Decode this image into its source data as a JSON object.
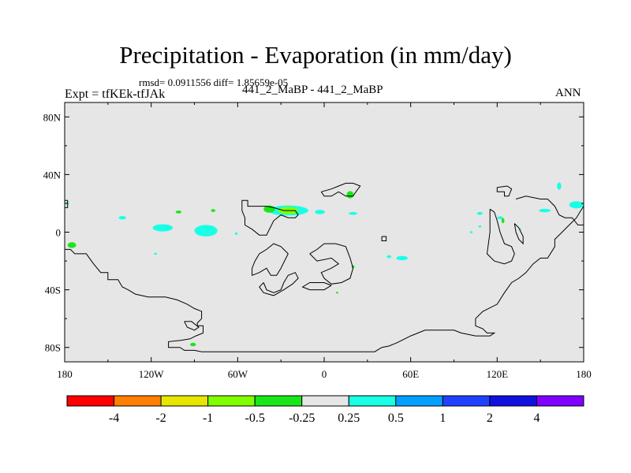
{
  "title": "Precipitation - Evaporation (in mm/day)",
  "stats": "rmsd= 0.0911556 diff= 1.85659e-05",
  "experiment": "Expt = tfKEk-tfJAk",
  "center_label": "441_2_MaBP - 441_2_MaBP",
  "season": "ANN",
  "colors": {
    "land_background": "#e6e6e6",
    "coast_line": "#000000",
    "levels": [
      "#ff0000",
      "#ff8000",
      "#e6e600",
      "#80ff00",
      "#19e619",
      "#e6e6e6",
      "#19ffe6",
      "#00a0ff",
      "#2040ff",
      "#1010e0",
      "#8000ff"
    ]
  },
  "chart_data": {
    "type": "heatmap",
    "projection": "cylindrical equidistant",
    "xlim": [
      -180,
      180
    ],
    "ylim": [
      -90,
      90
    ],
    "x_ticks": [
      -180,
      -120,
      -60,
      0,
      60,
      120,
      180
    ],
    "x_tick_labels": [
      "180",
      "120W",
      "60W",
      "0",
      "60E",
      "120E",
      "180"
    ],
    "y_ticks": [
      80,
      40,
      0,
      -40,
      -80
    ],
    "y_tick_labels": [
      "80N",
      "40N",
      "0",
      "40S",
      "80S"
    ],
    "colorbar": {
      "boundaries": [
        "-4",
        "-2",
        "-1",
        "-0.5",
        "-0.25",
        "0.25",
        "0.5",
        "1",
        "2",
        "4"
      ]
    },
    "anomaly_patches": [
      {
        "lon": -112,
        "lat": 3,
        "rlon": 7,
        "rlat": 2.5,
        "level": 6
      },
      {
        "lon": -82,
        "lat": 1,
        "rlon": 8,
        "rlat": 4,
        "level": 6
      },
      {
        "lon": -140,
        "lat": 10,
        "rlon": 2.5,
        "rlat": 1.2,
        "level": 6
      },
      {
        "lon": -175,
        "lat": -9,
        "rlon": 3,
        "rlat": 2,
        "level": 4
      },
      {
        "lon": -25,
        "lat": 15,
        "rlon": 14,
        "rlat": 3.5,
        "level": 6
      },
      {
        "lon": -25,
        "lat": 15,
        "rlon": 7,
        "rlat": 2.5,
        "level": 3
      },
      {
        "lon": -38,
        "lat": 16,
        "rlon": 4,
        "rlat": 2.5,
        "level": 4
      },
      {
        "lon": -3,
        "lat": 14,
        "rlon": 3.5,
        "rlat": 1.5,
        "level": 6
      },
      {
        "lon": 18,
        "lat": 26,
        "rlon": 2.5,
        "rlat": 2.5,
        "level": 4
      },
      {
        "lon": 20,
        "lat": 13,
        "rlon": 3,
        "rlat": 1,
        "level": 6
      },
      {
        "lon": -101,
        "lat": 14,
        "rlon": 2,
        "rlat": 1,
        "level": 4
      },
      {
        "lon": -77,
        "lat": 15,
        "rlon": 1.5,
        "rlat": 1,
        "level": 4
      },
      {
        "lon": -61,
        "lat": -1,
        "rlon": 1,
        "rlat": 0.8,
        "level": 6
      },
      {
        "lon": -117,
        "lat": -15,
        "rlon": 1,
        "rlat": 0.7,
        "level": 6
      },
      {
        "lon": 54,
        "lat": -18,
        "rlon": 4,
        "rlat": 1.5,
        "level": 6
      },
      {
        "lon": 45,
        "lat": -17,
        "rlon": 1.5,
        "rlat": 1,
        "level": 6
      },
      {
        "lon": 20,
        "lat": -24,
        "rlon": 1,
        "rlat": 1,
        "level": 4
      },
      {
        "lon": 9,
        "lat": -42,
        "rlon": 0.7,
        "rlat": 0.7,
        "level": 4
      },
      {
        "lon": 108,
        "lat": 13,
        "rlon": 2,
        "rlat": 1,
        "level": 6
      },
      {
        "lon": 122,
        "lat": 10,
        "rlon": 2,
        "rlat": 1,
        "level": 6
      },
      {
        "lon": 124,
        "lat": 8,
        "rlon": 1,
        "rlat": 1.8,
        "level": 4
      },
      {
        "lon": 108,
        "lat": 4,
        "rlon": 1,
        "rlat": 0.7,
        "level": 6
      },
      {
        "lon": 102,
        "lat": 0,
        "rlon": 1,
        "rlat": 0.7,
        "level": 6
      },
      {
        "lon": 136,
        "lat": 2,
        "rlon": 0.8,
        "rlat": 0.6,
        "level": 6
      },
      {
        "lon": 163,
        "lat": 32,
        "rlon": 1.5,
        "rlat": 2.5,
        "level": 6
      },
      {
        "lon": 175,
        "lat": 19,
        "rlon": 5,
        "rlat": 2.5,
        "level": 6
      },
      {
        "lon": 153,
        "lat": 15,
        "rlon": 4,
        "rlat": 1.2,
        "level": 6
      },
      {
        "lon": -91,
        "lat": -78,
        "rlon": 2,
        "rlat": 1.2,
        "level": 4
      },
      {
        "lon": -178,
        "lat": 20,
        "rlon": 1,
        "rlat": 1,
        "level": 6
      }
    ],
    "coastlines": [
      [
        [
          -180,
          -12
        ],
        [
          -176,
          -12
        ],
        [
          -173,
          -15
        ],
        [
          -165,
          -15
        ],
        [
          -160,
          -22
        ],
        [
          -155,
          -28
        ],
        [
          -150,
          -28
        ],
        [
          -150,
          -33
        ],
        [
          -143,
          -33
        ],
        [
          -140,
          -38
        ],
        [
          -136,
          -40
        ],
        [
          -131,
          -43
        ],
        [
          -122,
          -45
        ],
        [
          -110,
          -45
        ],
        [
          -102,
          -47
        ],
        [
          -95,
          -50
        ],
        [
          -90,
          -53
        ],
        [
          -85,
          -55
        ],
        [
          -85,
          -60
        ],
        [
          -88,
          -63
        ],
        [
          -88,
          -65
        ],
        [
          -84,
          -65
        ],
        [
          -84,
          -70
        ],
        [
          -89,
          -72
        ],
        [
          -93,
          -74
        ],
        [
          -99,
          -75
        ],
        [
          -108,
          -76
        ],
        [
          -108,
          -80
        ],
        [
          -100,
          -80
        ],
        [
          -97,
          -82
        ],
        [
          -90,
          -82
        ],
        [
          -85,
          -83
        ],
        [
          -75,
          -83
        ],
        [
          -60,
          -83
        ],
        [
          -30,
          -83
        ],
        [
          0,
          -83
        ],
        [
          30,
          -83
        ],
        [
          35,
          -83
        ],
        [
          40,
          -80
        ],
        [
          45,
          -79
        ],
        [
          50,
          -77
        ],
        [
          60,
          -72
        ],
        [
          70,
          -68
        ],
        [
          80,
          -68
        ],
        [
          90,
          -68
        ],
        [
          95,
          -70
        ],
        [
          105,
          -72
        ],
        [
          115,
          -72
        ],
        [
          118,
          -70
        ],
        [
          113,
          -70
        ],
        [
          110,
          -67
        ],
        [
          105,
          -65
        ],
        [
          105,
          -60
        ],
        [
          110,
          -55
        ],
        [
          120,
          -50
        ],
        [
          125,
          -42
        ],
        [
          130,
          -35
        ],
        [
          135,
          -32
        ],
        [
          140,
          -28
        ],
        [
          145,
          -22
        ],
        [
          150,
          -18
        ],
        [
          155,
          -18
        ],
        [
          160,
          -10
        ],
        [
          160,
          -5
        ],
        [
          165,
          0
        ],
        [
          170,
          5
        ],
        [
          175,
          10
        ],
        [
          178,
          15
        ],
        [
          180,
          18
        ]
      ],
      [
        [
          -97,
          -62
        ],
        [
          -95,
          -66
        ],
        [
          -90,
          -68
        ],
        [
          -87,
          -66
        ],
        [
          -92,
          -62
        ],
        [
          -97,
          -62
        ]
      ],
      [
        [
          -50,
          18
        ],
        [
          -53,
          18
        ],
        [
          -53,
          22
        ],
        [
          -57,
          22
        ],
        [
          -57,
          15
        ],
        [
          -55,
          10
        ],
        [
          -55,
          5
        ],
        [
          -50,
          2
        ],
        [
          -45,
          -2
        ],
        [
          -40,
          -2
        ],
        [
          -35,
          8
        ],
        [
          -30,
          12
        ],
        [
          -25,
          10
        ],
        [
          -20,
          10
        ],
        [
          -18,
          12
        ],
        [
          -20,
          15
        ],
        [
          -28,
          15
        ],
        [
          -35,
          17
        ],
        [
          -40,
          18
        ],
        [
          -50,
          18
        ]
      ],
      [
        [
          -45,
          -15
        ],
        [
          -48,
          -20
        ],
        [
          -50,
          -25
        ],
        [
          -50,
          -30
        ],
        [
          -45,
          -28
        ],
        [
          -40,
          -25
        ],
        [
          -37,
          -30
        ],
        [
          -33,
          -30
        ],
        [
          -30,
          -25
        ],
        [
          -25,
          -15
        ],
        [
          -30,
          -10
        ],
        [
          -35,
          -8
        ],
        [
          -40,
          -12
        ],
        [
          -45,
          -15
        ]
      ],
      [
        [
          -42,
          -35
        ],
        [
          -40,
          -40
        ],
        [
          -35,
          -42
        ],
        [
          -30,
          -40
        ],
        [
          -28,
          -35
        ],
        [
          -25,
          -30
        ],
        [
          -20,
          -28
        ],
        [
          -18,
          -32
        ],
        [
          -22,
          -36
        ],
        [
          -28,
          -40
        ],
        [
          -35,
          -44
        ],
        [
          -42,
          -42
        ],
        [
          -45,
          -38
        ],
        [
          -42,
          -35
        ]
      ],
      [
        [
          -2,
          28
        ],
        [
          5,
          30
        ],
        [
          10,
          32
        ],
        [
          15,
          34
        ],
        [
          20,
          34
        ],
        [
          25,
          32
        ],
        [
          22,
          28
        ],
        [
          20,
          25
        ],
        [
          15,
          25
        ],
        [
          10,
          28
        ],
        [
          5,
          25
        ],
        [
          0,
          25
        ],
        [
          -2,
          28
        ]
      ],
      [
        [
          -10,
          -15
        ],
        [
          -5,
          -12
        ],
        [
          0,
          -8
        ],
        [
          8,
          -8
        ],
        [
          15,
          -10
        ],
        [
          18,
          -18
        ],
        [
          20,
          -25
        ],
        [
          18,
          -32
        ],
        [
          12,
          -35
        ],
        [
          5,
          -36
        ],
        [
          0,
          -32
        ],
        [
          -2,
          -28
        ],
        [
          5,
          -25
        ],
        [
          10,
          -22
        ],
        [
          5,
          -18
        ],
        [
          -5,
          -20
        ],
        [
          -10,
          -15
        ]
      ],
      [
        [
          5,
          -37
        ],
        [
          0,
          -40
        ],
        [
          -10,
          -40
        ],
        [
          -15,
          -38
        ],
        [
          -10,
          -35
        ],
        [
          0,
          -35
        ],
        [
          5,
          -37
        ]
      ],
      [
        [
          40,
          -3
        ],
        [
          40,
          -6
        ],
        [
          43,
          -6
        ],
        [
          43,
          -3
        ],
        [
          40,
          -3
        ]
      ],
      [
        [
          120,
          31
        ],
        [
          120,
          28
        ],
        [
          125,
          28
        ],
        [
          125,
          25
        ],
        [
          128,
          25
        ],
        [
          130,
          30
        ],
        [
          127,
          32
        ],
        [
          120,
          31
        ]
      ],
      [
        [
          133,
          23
        ],
        [
          140,
          25
        ],
        [
          150,
          23
        ],
        [
          155,
          23
        ],
        [
          160,
          18
        ],
        [
          163,
          12
        ],
        [
          167,
          10
        ],
        [
          172,
          10
        ],
        [
          176,
          5
        ],
        [
          180,
          5
        ]
      ],
      [
        [
          132,
          6
        ],
        [
          133,
          0
        ],
        [
          135,
          -5
        ],
        [
          138,
          -8
        ],
        [
          138,
          -3
        ],
        [
          135,
          3
        ],
        [
          132,
          6
        ]
      ],
      [
        [
          115,
          16
        ],
        [
          115,
          0
        ],
        [
          113,
          -15
        ],
        [
          118,
          -20
        ],
        [
          125,
          -22
        ],
        [
          130,
          -20
        ],
        [
          132,
          -15
        ],
        [
          130,
          -10
        ],
        [
          125,
          -8
        ],
        [
          122,
          0
        ],
        [
          120,
          8
        ],
        [
          118,
          14
        ],
        [
          115,
          16
        ]
      ],
      [
        [
          -180,
          22
        ],
        [
          -178,
          22
        ],
        [
          -178,
          17
        ],
        [
          -180,
          17
        ]
      ]
    ]
  }
}
